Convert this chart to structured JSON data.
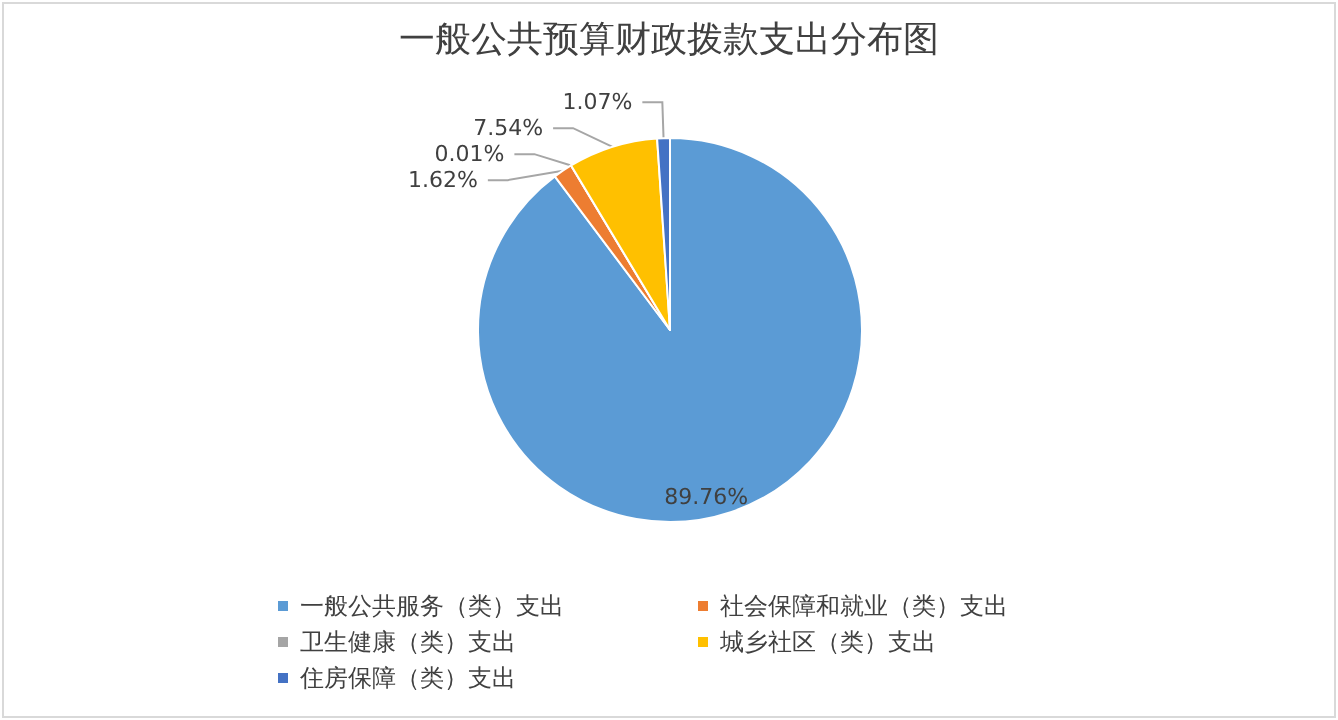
{
  "chart_data": {
    "type": "pie",
    "title": "一般公共预算财政拨款支出分布图",
    "categories": [
      "一般公共服务（类）支出",
      "社会保障和就业（类）支出",
      "卫生健康（类）支出",
      "城乡社区（类）支出",
      "住房保障（类）支出"
    ],
    "values": [
      89.76,
      1.62,
      0.01,
      7.54,
      1.07
    ],
    "value_labels": [
      "89.76%",
      "1.62%",
      "0.01%",
      "7.54%",
      "1.07%"
    ],
    "colors": [
      "#5b9bd5",
      "#ed7d31",
      "#a5a5a5",
      "#ffc000",
      "#4472c4"
    ],
    "legend": "bottom"
  }
}
